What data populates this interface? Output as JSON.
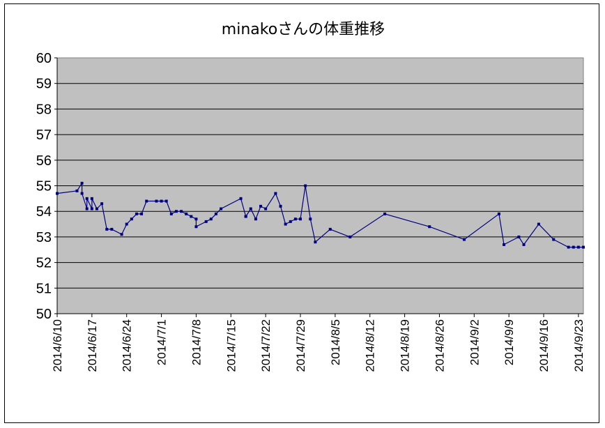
{
  "chart_data": {
    "type": "line",
    "title": "minakoさんの体重推移",
    "xlabel": "",
    "ylabel": "",
    "ylim": [
      50,
      60
    ],
    "yticks": [
      50,
      51,
      52,
      53,
      54,
      55,
      56,
      57,
      58,
      59,
      60
    ],
    "xlim": [
      "2014/6/10",
      "2014/9/24"
    ],
    "xticks": [
      "2014/6/10",
      "2014/6/17",
      "2014/6/24",
      "2014/7/1",
      "2014/7/8",
      "2014/7/15",
      "2014/7/22",
      "2014/7/29",
      "2014/8/5",
      "2014/8/12",
      "2014/8/19",
      "2014/8/26",
      "2014/9/2",
      "2014/9/9",
      "2014/9/16",
      "2014/9/23"
    ],
    "grid": true,
    "legend": "none",
    "colors": {
      "plot_bg": "#c0c0c0",
      "line": "#000080",
      "grid": "#000000"
    },
    "series": [
      {
        "x": [
          "2014/6/10",
          "2014/6/14",
          "2014/6/15",
          "2014/6/15",
          "2014/6/16",
          "2014/6/16",
          "2014/6/17",
          "2014/6/17",
          "2014/6/18",
          "2014/6/19",
          "2014/6/20",
          "2014/6/21",
          "2014/6/23",
          "2014/6/24",
          "2014/6/25",
          "2014/6/26",
          "2014/6/27",
          "2014/6/28",
          "2014/6/30",
          "2014/7/1",
          "2014/7/2",
          "2014/7/3",
          "2014/7/4",
          "2014/7/5",
          "2014/7/6",
          "2014/7/7",
          "2014/7/8",
          "2014/7/8",
          "2014/7/10",
          "2014/7/11",
          "2014/7/12",
          "2014/7/13",
          "2014/7/17",
          "2014/7/18",
          "2014/7/18",
          "2014/7/19",
          "2014/7/20",
          "2014/7/21",
          "2014/7/22",
          "2014/7/24",
          "2014/7/25",
          "2014/7/26",
          "2014/7/27",
          "2014/7/28",
          "2014/7/29",
          "2014/7/30",
          "2014/7/31",
          "2014/8/1",
          "2014/8/4",
          "2014/8/8",
          "2014/8/15",
          "2014/8/24",
          "2014/8/31",
          "2014/9/7",
          "2014/9/8",
          "2014/9/11",
          "2014/9/12",
          "2014/9/15",
          "2014/9/18",
          "2014/9/21",
          "2014/9/22",
          "2014/9/23",
          "2014/9/24"
        ],
        "values": [
          54.7,
          54.8,
          55.1,
          54.7,
          54.1,
          54.5,
          54.1,
          54.5,
          54.1,
          54.3,
          53.3,
          53.3,
          53.1,
          53.5,
          53.7,
          53.9,
          53.9,
          54.4,
          54.4,
          54.4,
          54.4,
          53.9,
          54.0,
          54.0,
          53.9,
          53.8,
          53.7,
          53.4,
          53.6,
          53.7,
          53.9,
          54.1,
          54.5,
          53.8,
          53.8,
          54.1,
          53.7,
          54.2,
          54.1,
          54.7,
          54.2,
          53.5,
          53.6,
          53.7,
          53.7,
          55.0,
          53.7,
          52.8,
          53.3,
          53.0,
          53.9,
          53.4,
          52.9,
          53.9,
          52.7,
          53.0,
          52.7,
          53.5,
          52.9,
          52.6,
          52.6,
          52.6,
          52.6
        ]
      }
    ]
  }
}
